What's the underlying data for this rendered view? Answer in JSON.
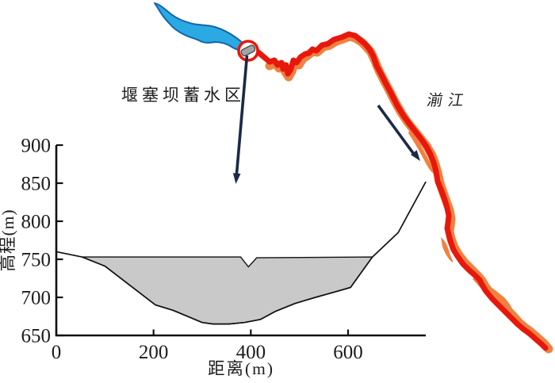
{
  "map": {
    "lake_area_label": "堰塞坝蓄水区",
    "river_label": "湔江"
  },
  "colors": {
    "lake_fill": "#2BA9E2",
    "lake_outline": "#1565AC",
    "river_red": "#E8170C",
    "river_orange": "#EF8240",
    "dam_circle_red": "#E8170C",
    "dam_fill": "#A3A3A3",
    "dam_outline": "#4D4D4D",
    "arrow_navy": "#1A2A47",
    "water_fill": "#C9C9C9",
    "line_black": "#111111"
  },
  "chart_data": {
    "type": "area",
    "title": "",
    "xlabel": "距离(m)",
    "ylabel": "高程(m)",
    "xlim": [
      0,
      760
    ],
    "ylim": [
      650,
      900
    ],
    "xticks": [
      0,
      200,
      400,
      600
    ],
    "yticks": [
      650,
      700,
      750,
      800,
      850,
      900
    ],
    "grid": false,
    "legend": "none",
    "water_level_m": 753,
    "spillway_notch": {
      "x_from": 379,
      "x_to": 412,
      "bottom_elevation": 740
    },
    "valley_profile": [
      [
        0,
        760
      ],
      [
        53,
        753
      ],
      [
        100,
        741
      ],
      [
        204,
        690
      ],
      [
        240,
        683
      ],
      [
        300,
        667
      ],
      [
        322,
        665
      ],
      [
        355,
        665
      ],
      [
        387,
        667
      ],
      [
        403,
        669
      ],
      [
        420,
        671
      ],
      [
        452,
        682
      ],
      [
        491,
        692
      ],
      [
        533,
        700
      ],
      [
        572,
        707
      ],
      [
        605,
        713
      ],
      [
        650,
        753
      ],
      [
        703,
        785
      ],
      [
        760,
        852
      ]
    ],
    "water_surface": [
      [
        53,
        753
      ],
      [
        379,
        753
      ],
      [
        395,
        740
      ],
      [
        412,
        752
      ],
      [
        650,
        753
      ]
    ]
  }
}
